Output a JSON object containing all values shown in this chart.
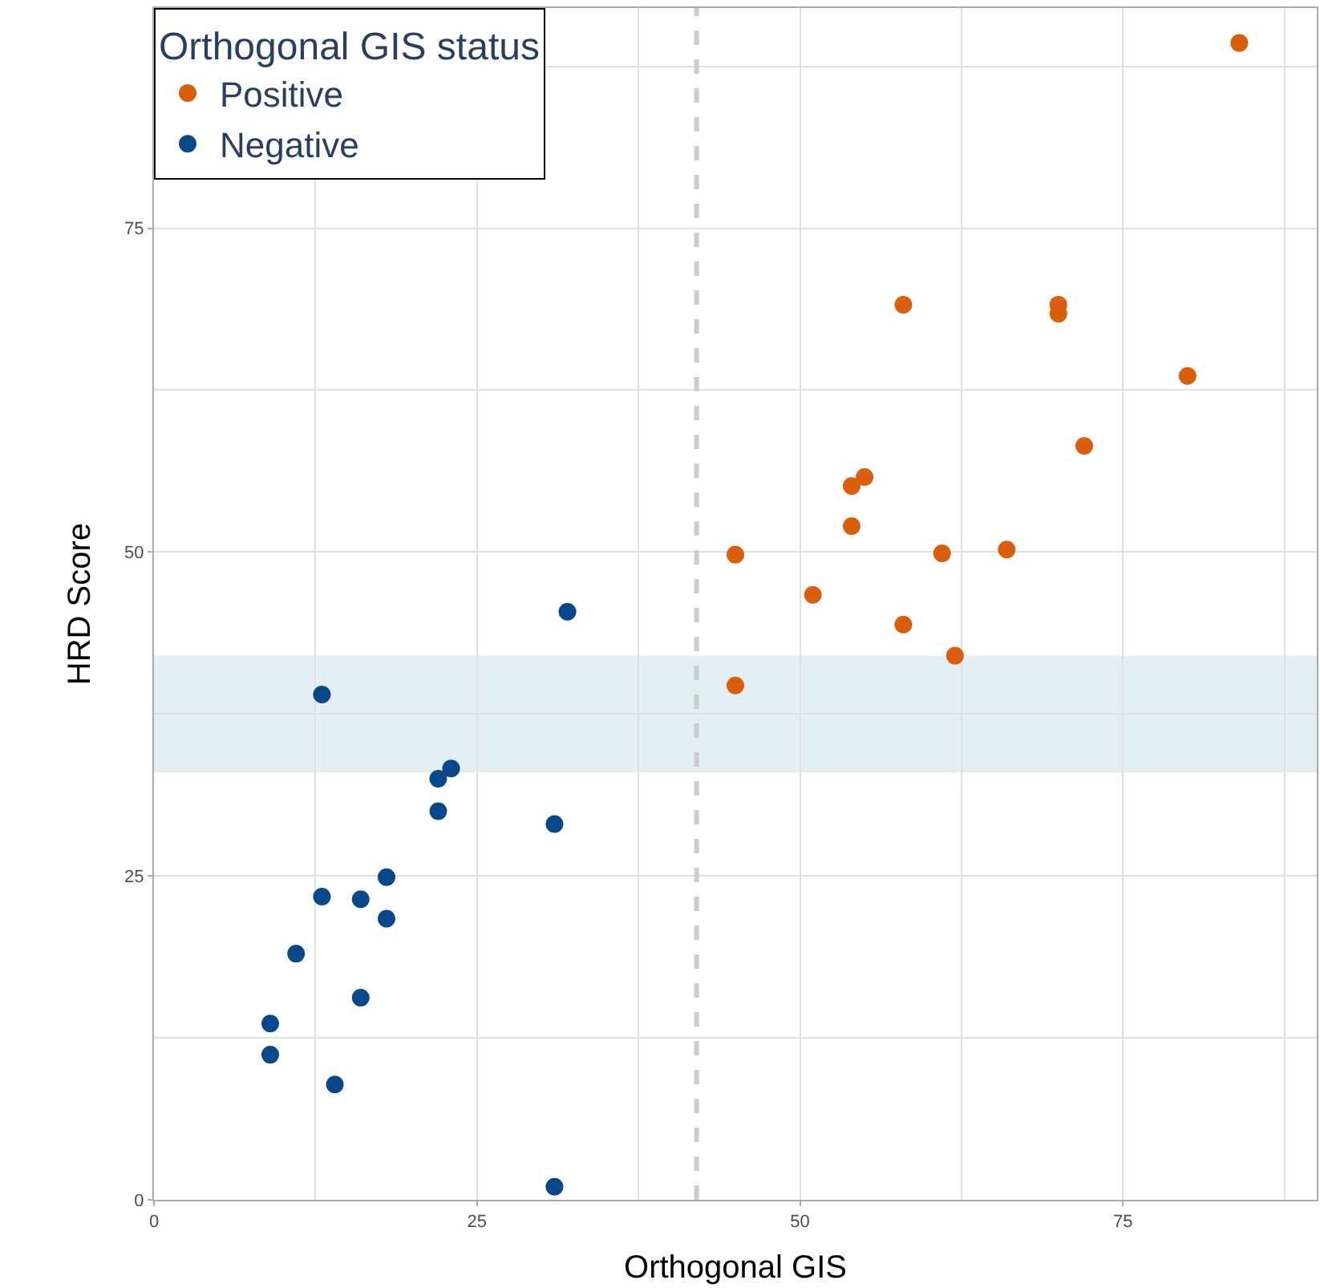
{
  "chart_data": {
    "type": "scatter",
    "xlabel": "Orthogonal GIS",
    "ylabel": "HRD Score",
    "legend_title": "Orthogonal GIS status",
    "legend": "top left",
    "grid": true,
    "marker": "circle",
    "xlim": [
      0,
      90
    ],
    "ylim": [
      0,
      92
    ],
    "xticks": [
      0,
      25,
      50,
      75
    ],
    "yticks": [
      0,
      25,
      50,
      75
    ],
    "series": [
      {
        "name": "Positive",
        "color": "#d95f0e",
        "x": [
          84,
          58,
          70,
          70,
          80,
          72,
          55,
          54,
          54,
          45,
          61,
          66,
          51,
          58,
          62,
          45
        ],
        "values": [
          89.3,
          69.1,
          69.1,
          68.4,
          63.6,
          58.2,
          55.8,
          55.1,
          52.0,
          49.8,
          49.9,
          50.2,
          46.7,
          44.4,
          42.0,
          39.7
        ]
      },
      {
        "name": "Negative",
        "color": "#08478a",
        "x": [
          32,
          13,
          23,
          22,
          22,
          31,
          18,
          13,
          16,
          18,
          11,
          16,
          9,
          9,
          14,
          31
        ],
        "values": [
          45.4,
          39.0,
          33.3,
          32.5,
          30.0,
          29.0,
          24.9,
          23.4,
          23.2,
          21.7,
          19.0,
          15.6,
          13.6,
          11.2,
          8.9,
          1.0
        ]
      }
    ],
    "ref_lines": [
      {
        "axis": "x",
        "value": 42,
        "color": "#cccccc",
        "line_style": "dashed"
      }
    ],
    "bands": [
      {
        "axis": "y",
        "from": 33,
        "to": 42,
        "color": "#e3eff4"
      }
    ]
  }
}
